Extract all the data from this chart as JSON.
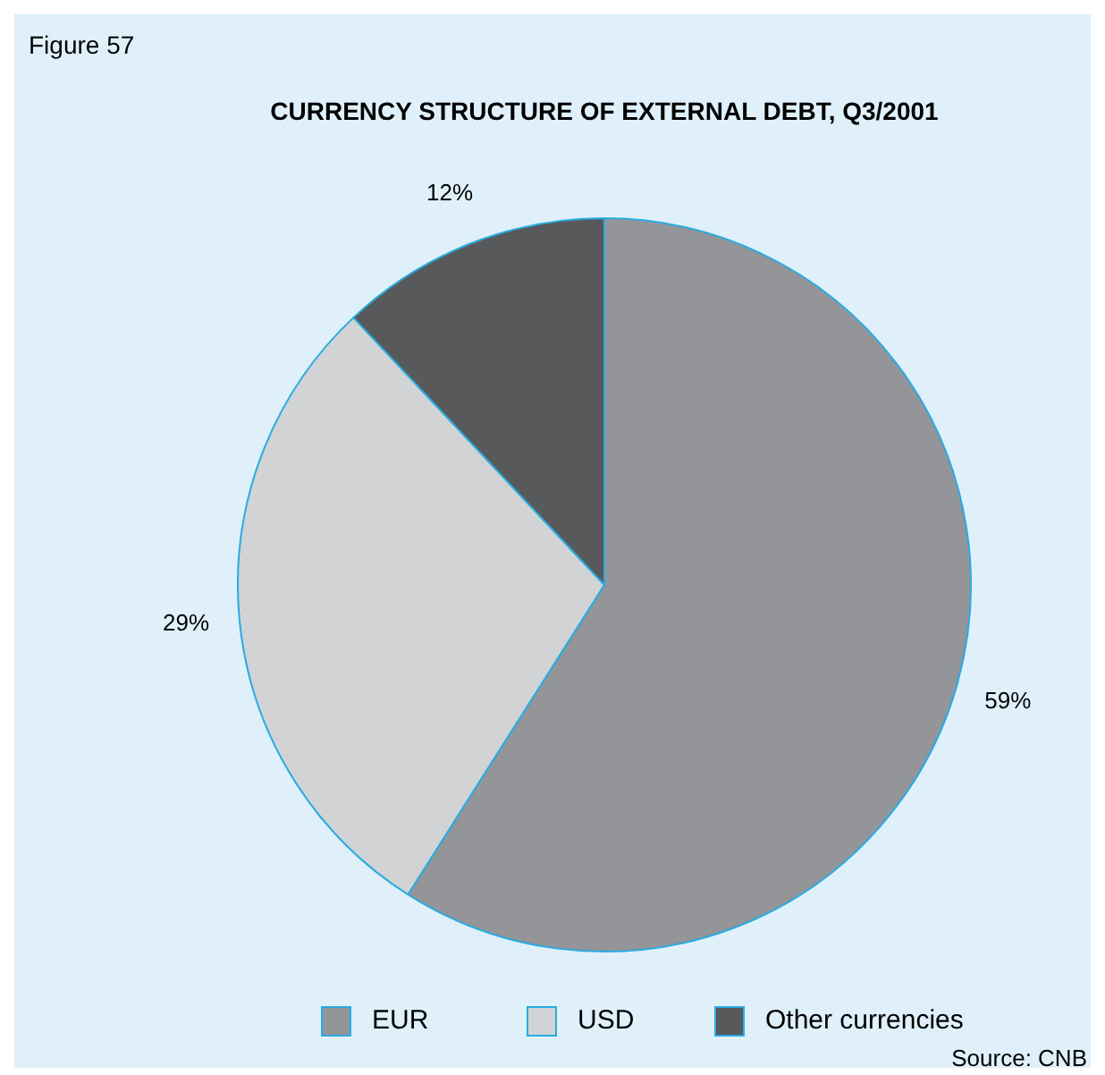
{
  "chart_data": {
    "type": "pie",
    "title": "CURRENCY STRUCTURE OF EXTERNAL DEBT, Q3/2001",
    "annotations": [
      "Figure 57",
      "Source: CNB"
    ],
    "categories": [
      "EUR",
      "USD",
      "Other currencies"
    ],
    "values": [
      59,
      29,
      12
    ],
    "value_labels": [
      "59%",
      "29%",
      "12%"
    ],
    "colors": [
      "#939598",
      "#d1d3d4",
      "#58595b"
    ],
    "legend": "bottom"
  }
}
